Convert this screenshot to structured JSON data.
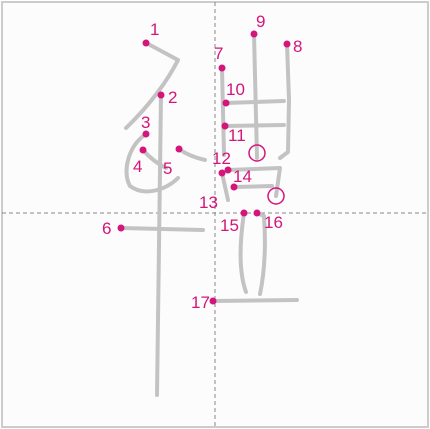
{
  "diagram": {
    "character": "體",
    "stroke_count": 17,
    "colors": {
      "background": "#fcfcfc",
      "border": "#cccccc",
      "guide_line": "#888888",
      "stroke": "#c3c3c3",
      "marker": "#d4157a"
    },
    "stroke_numbers": [
      "1",
      "2",
      "3",
      "4",
      "5",
      "6",
      "7",
      "8",
      "9",
      "10",
      "11",
      "12",
      "13",
      "14",
      "15",
      "16",
      "17"
    ]
  }
}
